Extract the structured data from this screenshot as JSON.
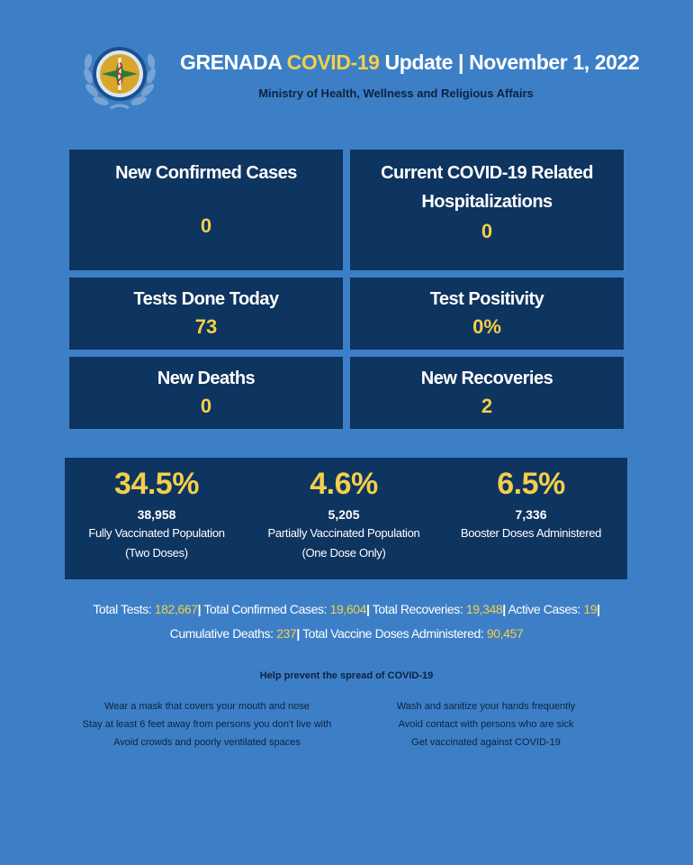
{
  "header": {
    "title_prefix": "GRENADA ",
    "title_highlight": "COVID-19",
    "title_suffix": " Update | November 1, 2022",
    "subtitle": "Ministry of Health, Wellness and Religious Affairs",
    "logo_icon": "ministry-of-health-seal"
  },
  "stats": {
    "new_cases": {
      "label": "New Confirmed Cases",
      "value": "0"
    },
    "hospitalizations": {
      "label_line1": "Current COVID-19 Related",
      "label_line2": "Hospitalizations",
      "value": "0"
    },
    "tests_today": {
      "label": "Tests Done Today",
      "value": "73"
    },
    "positivity": {
      "label": "Test Positivity",
      "value": "0%"
    },
    "new_deaths": {
      "label": "New Deaths",
      "value": "0"
    },
    "new_recoveries": {
      "label": "New Recoveries",
      "value": "2"
    }
  },
  "vaccination": {
    "fully": {
      "percent": "34.5%",
      "count": "38,958",
      "desc_line1": "Fully Vaccinated Population",
      "desc_line2": "(Two Doses)"
    },
    "partial": {
      "percent": "4.6%",
      "count": "5,205",
      "desc_line1": "Partially Vaccinated Population",
      "desc_line2": "(One Dose Only)"
    },
    "booster": {
      "percent": "6.5%",
      "count": "7,336",
      "desc_line1": "Booster Doses Administered"
    }
  },
  "totals": {
    "tests_label": "Total Tests: ",
    "tests_value": "182,667",
    "cases_label": " Total Confirmed Cases: ",
    "cases_value": "19,604",
    "recoveries_label": " Total Recoveries: ",
    "recoveries_value": "19,348",
    "active_label": " Active Cases: ",
    "active_value": "19",
    "deaths_label": "Cumulative Deaths: ",
    "deaths_value": "237",
    "vaccine_label": " Total Vaccine Doses Administered: ",
    "vaccine_value": "90,457",
    "separator": "|"
  },
  "prevention": {
    "title": "Help prevent the spread of COVID-19",
    "left": [
      "Wear a mask that covers your mouth and nose",
      "Stay at least 6 feet away from persons you don't live with",
      "Avoid crowds and poorly ventilated spaces"
    ],
    "right": [
      "Wash and sanitize your hands frequently",
      "Avoid contact with persons who are sick",
      "Get vaccinated against COVID-19"
    ]
  },
  "colors": {
    "background": "#3d7fc6",
    "panel": "#0e3460",
    "accent": "#f3cf4a"
  }
}
